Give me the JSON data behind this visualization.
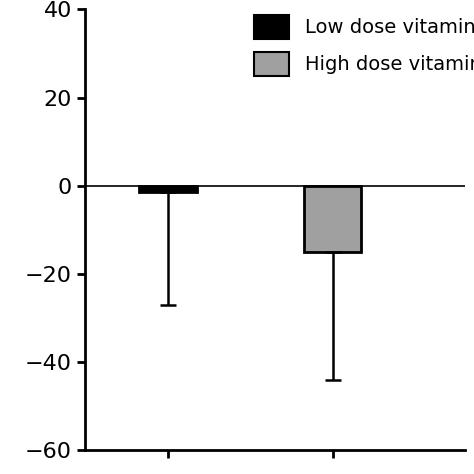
{
  "bar_positions": [
    1,
    2
  ],
  "bar_values": [
    -1.5,
    -15
  ],
  "bar_colors": [
    "#000000",
    "#a0a0a0"
  ],
  "bar_edgecolors": [
    "#000000",
    "#000000"
  ],
  "error_low": [
    25.5,
    29
  ],
  "error_high": [
    0,
    0
  ],
  "ylim": [
    -60,
    40
  ],
  "yticks": [
    -60,
    -40,
    -20,
    0,
    20,
    40
  ],
  "bar_width": 0.35,
  "legend_labels": [
    "Low dose vitamin",
    "High dose vitamin"
  ],
  "legend_colors": [
    "#000000",
    "#a0a0a0"
  ],
  "background_color": "#ffffff",
  "capsize": 6,
  "error_linewidth": 1.8,
  "xlim": [
    0.5,
    2.8
  ],
  "tick_fontsize": 16,
  "legend_fontsize": 14
}
